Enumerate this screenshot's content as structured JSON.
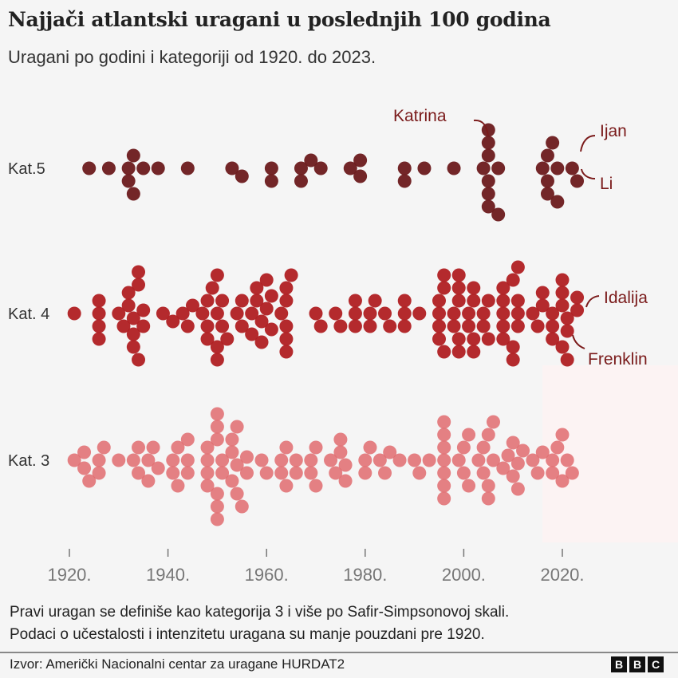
{
  "header": {
    "title": "Najjači atlantski uragani u poslednjih 100 godina",
    "subtitle": "Uragani po godini i kategoriji od 1920. do 2023."
  },
  "chart_data": {
    "type": "scatter",
    "subtype": "beeswarm",
    "title": "Najjači atlantski uragani u poslednjih 100 godina",
    "subtitle": "Uragani po godini i kategoriji od 1920. do 2023.",
    "xlim": [
      1920,
      2023
    ],
    "x_ticks": [
      1920,
      1940,
      1960,
      1980,
      2000,
      2020
    ],
    "x_tick_labels": [
      "1920.",
      "1940.",
      "1960.",
      "1980.",
      "2000.",
      "2020."
    ],
    "grid": false,
    "series": [
      {
        "name": "Kat.5",
        "color": "#6b1a1c",
        "years": [
          1924,
          1928,
          1932,
          1932,
          1933,
          1933,
          1935,
          1938,
          1944,
          1953,
          1955,
          1961,
          1961,
          1967,
          1967,
          1969,
          1971,
          1977,
          1979,
          1979,
          1988,
          1988,
          1992,
          1998,
          2004,
          2005,
          2005,
          2005,
          2005,
          2005,
          2005,
          2007,
          2007,
          2016,
          2017,
          2017,
          2017,
          2018,
          2019,
          2019,
          2022,
          2023
        ]
      },
      {
        "name": "Kat. 4",
        "color": "#b01f22",
        "years": [
          1921,
          1926,
          1926,
          1926,
          1926,
          1930,
          1931,
          1932,
          1932,
          1933,
          1933,
          1933,
          1934,
          1934,
          1934,
          1935,
          1935,
          1939,
          1941,
          1943,
          1944,
          1945,
          1947,
          1948,
          1948,
          1948,
          1949,
          1950,
          1950,
          1950,
          1950,
          1951,
          1951,
          1952,
          1954,
          1955,
          1955,
          1957,
          1957,
          1958,
          1958,
          1959,
          1959,
          1960,
          1960,
          1961,
          1961,
          1963,
          1964,
          1964,
          1964,
          1964,
          1964,
          1965,
          1970,
          1971,
          1974,
          1975,
          1978,
          1978,
          1978,
          1981,
          1981,
          1982,
          1984,
          1985,
          1988,
          1988,
          1988,
          1991,
          1995,
          1995,
          1995,
          1995,
          1996,
          1996,
          1996,
          1998,
          1998,
          1999,
          1999,
          1999,
          1999,
          1999,
          2001,
          2001,
          2002,
          2002,
          2002,
          2002,
          2004,
          2004,
          2005,
          2005,
          2008,
          2008,
          2008,
          2008,
          2008,
          2010,
          2010,
          2010,
          2011,
          2011,
          2011,
          2011,
          2014,
          2015,
          2016,
          2016,
          2018,
          2018,
          2018,
          2020,
          2020,
          2020,
          2020,
          2021,
          2021,
          2021,
          2023,
          2023
        ]
      },
      {
        "name": "Kat. 3",
        "color": "#e06b6e",
        "years": [
          1921,
          1923,
          1923,
          1924,
          1926,
          1926,
          1927,
          1930,
          1933,
          1934,
          1934,
          1936,
          1936,
          1937,
          1938,
          1941,
          1941,
          1942,
          1942,
          1944,
          1944,
          1944,
          1948,
          1948,
          1948,
          1948,
          1950,
          1950,
          1950,
          1950,
          1950,
          1950,
          1951,
          1951,
          1953,
          1953,
          1953,
          1954,
          1954,
          1954,
          1955,
          1956,
          1956,
          1959,
          1960,
          1963,
          1963,
          1964,
          1964,
          1966,
          1966,
          1969,
          1969,
          1970,
          1970,
          1973,
          1974,
          1975,
          1975,
          1976,
          1976,
          1980,
          1980,
          1981,
          1983,
          1984,
          1985,
          1987,
          1990,
          1991,
          1993,
          1996,
          1996,
          1996,
          1996,
          1996,
          1996,
          1996,
          1999,
          2000,
          2000,
          2001,
          2001,
          2003,
          2004,
          2004,
          2005,
          2005,
          2005,
          2006,
          2006,
          2008,
          2009,
          2010,
          2010,
          2011,
          2011,
          2012,
          2014,
          2015,
          2016,
          2018,
          2018,
          2019,
          2020,
          2020,
          2021,
          2022
        ]
      }
    ],
    "annotations": [
      {
        "label": "Katrina",
        "year": 2005,
        "category": "Kat.5"
      },
      {
        "label": "Ijan",
        "year": 2022,
        "category": "Kat.5"
      },
      {
        "label": "Li",
        "year": 2023,
        "category": "Kat.5"
      },
      {
        "label": "Idalija",
        "year": 2023,
        "category": "Kat. 4"
      },
      {
        "label": "Frenklin",
        "year": 2023,
        "category": "Kat. 4"
      }
    ]
  },
  "footer": {
    "note_line1": "Pravi uragan se definiše kao kategorija 3 i više po Safir-Simpsonovoj skali.",
    "note_line2": "Podaci o učestalosti i intenzitetu uragana su manje pouzdani pre 1920.",
    "source": "Izvor: Američki Nacionalni centar za uragane HURDAT2",
    "logo": [
      "B",
      "B",
      "C"
    ]
  }
}
